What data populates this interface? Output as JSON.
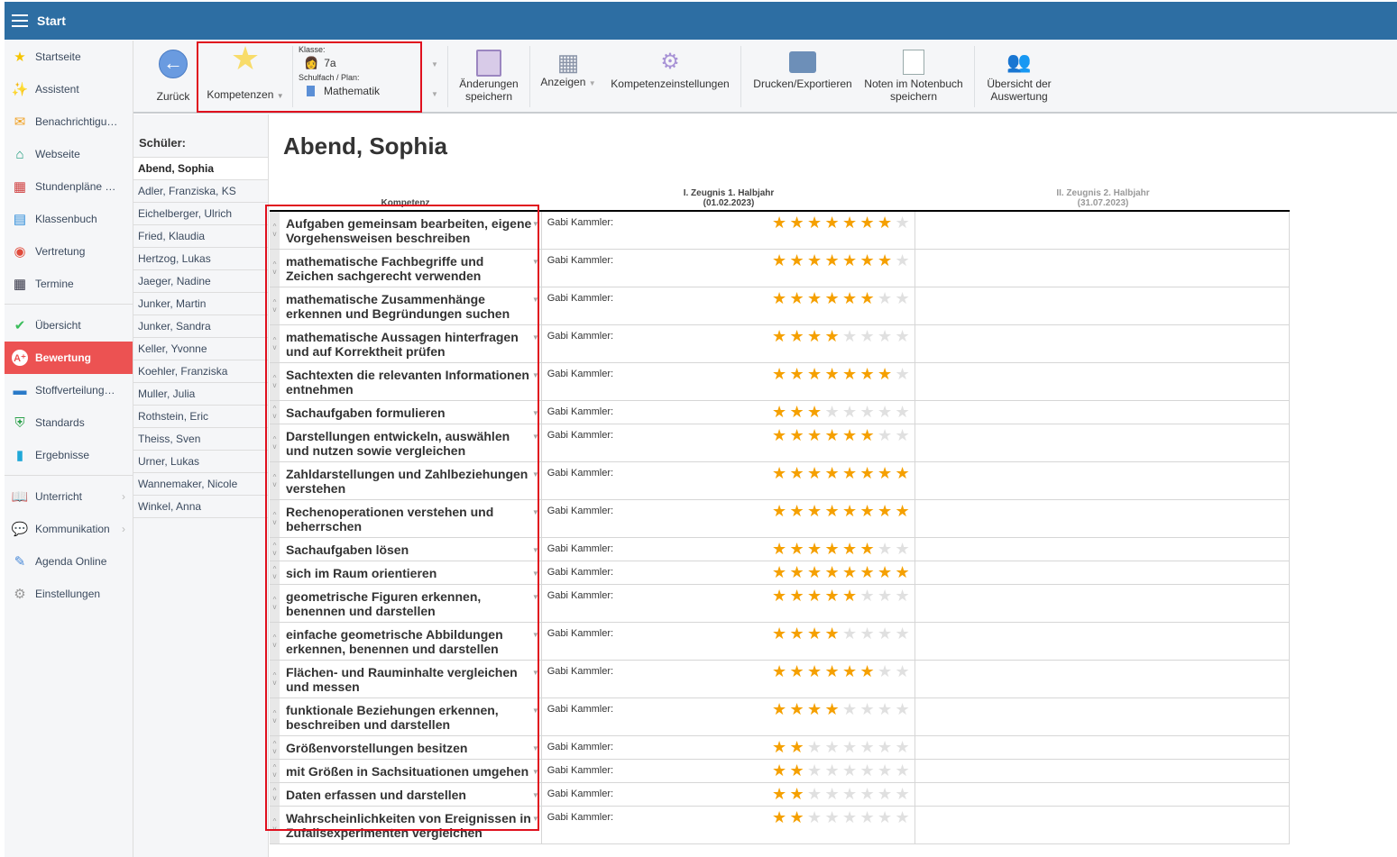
{
  "topbar": {
    "title": "Start"
  },
  "sidebar": {
    "items": [
      {
        "label": "Startseite",
        "icon": "star-icon"
      },
      {
        "label": "Assistent",
        "icon": "magic-wand-icon"
      },
      {
        "label": "Benachrichtigu…",
        "icon": "envelope-icon"
      },
      {
        "label": "Webseite",
        "icon": "house-icon"
      },
      {
        "label": "Stundenpläne …",
        "icon": "calendar-grid-icon"
      },
      {
        "label": "Klassenbuch",
        "icon": "notebook-icon"
      },
      {
        "label": "Vertretung",
        "icon": "person-icon"
      },
      {
        "label": "Termine",
        "icon": "calendar-icon"
      },
      {
        "label": "Übersicht",
        "icon": "check-circle-icon"
      },
      {
        "label": "Bewertung",
        "icon": "grade-icon",
        "active": true
      },
      {
        "label": "Stoffverteilung…",
        "icon": "briefcase-icon"
      },
      {
        "label": "Standards",
        "icon": "shield-icon"
      },
      {
        "label": "Ergebnisse",
        "icon": "bar-chart-icon"
      },
      {
        "label": "Unterricht",
        "icon": "book-icon"
      },
      {
        "label": "Kommunikation",
        "icon": "chat-icon"
      },
      {
        "label": "Agenda Online",
        "icon": "pen-icon"
      },
      {
        "label": "Einstellungen",
        "icon": "gear-icon"
      }
    ]
  },
  "toolbar": {
    "back": "Zurück",
    "kompetenzen": "Kompetenzen",
    "klasse_label": "Klasse:",
    "klasse_value": "7a",
    "fach_label": "Schulfach / Plan:",
    "fach_value": "Mathematik",
    "save": "Änderungen speichern",
    "anzeigen": "Anzeigen",
    "settings": "Kompetenzeinstellungen",
    "print": "Drucken/Exportieren",
    "notenbuch": "Noten im Notenbuch speichern",
    "overview": "Übersicht der Auswertung"
  },
  "students": {
    "header": "Schüler:",
    "list": [
      "Abend, Sophia",
      "Adler, Franziska, KS",
      "Eichelberger, Ulrich",
      "Fried, Klaudia",
      "Hertzog, Lukas",
      "Jaeger, Nadine",
      "Junker, Martin",
      "Junker, Sandra",
      "Keller, Yvonne",
      "Koehler, Franziska",
      "Muller, Julia",
      "Rothstein, Eric",
      "Theiss, Sven",
      "Urner, Lukas",
      "Wannemaker, Nicole",
      "Winkel, Anna"
    ],
    "selected": "Abend, Sophia"
  },
  "main": {
    "student_name": "Abend, Sophia",
    "col_kompetenz": "Kompetenz",
    "col1_title": "I. Zeugnis 1. Halbjahr",
    "col1_date": "(01.02.2023)",
    "col2_title": "II. Zeugnis 2. Halbjahr",
    "col2_date": "(31.07.2023)",
    "max_stars": 8,
    "colors": {
      "star_on": "#f5a000",
      "star_off": "#e0e0e0",
      "accent": "#ec5252",
      "topbar": "#2d6ea3"
    },
    "rows": [
      {
        "kompetenz": "Aufgaben gemeinsam bearbeiten, eigene Vorgehensweisen beschreiben",
        "teacher": "Gabi Kammler:",
        "stars": 7
      },
      {
        "kompetenz": "mathematische Fachbegriffe und Zeichen sachgerecht verwenden",
        "teacher": "Gabi Kammler:",
        "stars": 7
      },
      {
        "kompetenz": "mathematische Zusammenhänge erkennen und Begründungen suchen",
        "teacher": "Gabi Kammler:",
        "stars": 6
      },
      {
        "kompetenz": "mathematische Aussagen hinterfragen und auf Korrektheit prüfen",
        "teacher": "Gabi Kammler:",
        "stars": 4
      },
      {
        "kompetenz": "Sachtexten die relevanten Informationen entnehmen",
        "teacher": "Gabi Kammler:",
        "stars": 7
      },
      {
        "kompetenz": "Sachaufgaben formulieren",
        "teacher": "Gabi Kammler:",
        "stars": 3
      },
      {
        "kompetenz": "Darstellungen entwickeln, auswählen und nutzen sowie vergleichen",
        "teacher": "Gabi Kammler:",
        "stars": 6
      },
      {
        "kompetenz": "Zahldarstellungen und Zahlbeziehungen verstehen",
        "teacher": "Gabi Kammler:",
        "stars": 8
      },
      {
        "kompetenz": "Rechenoperationen verstehen und beherrschen",
        "teacher": "Gabi Kammler:",
        "stars": 8
      },
      {
        "kompetenz": "Sachaufgaben lösen",
        "teacher": "Gabi Kammler:",
        "stars": 6
      },
      {
        "kompetenz": "sich im Raum orientieren",
        "teacher": "Gabi Kammler:",
        "stars": 8
      },
      {
        "kompetenz": "geometrische Figuren erkennen, benennen und darstellen",
        "teacher": "Gabi Kammler:",
        "stars": 5
      },
      {
        "kompetenz": "einfache geometrische Abbildungen erkennen, benennen und darstellen",
        "teacher": "Gabi Kammler:",
        "stars": 4
      },
      {
        "kompetenz": "Flächen- und Rauminhalte vergleichen und messen",
        "teacher": "Gabi Kammler:",
        "stars": 6
      },
      {
        "kompetenz": "funktionale Beziehungen erkennen, beschreiben und darstellen",
        "teacher": "Gabi Kammler:",
        "stars": 4
      },
      {
        "kompetenz": "Größenvorstellungen besitzen",
        "teacher": "Gabi Kammler:",
        "stars": 2
      },
      {
        "kompetenz": "mit Größen in Sachsituationen umgehen",
        "teacher": "Gabi Kammler:",
        "stars": 2
      },
      {
        "kompetenz": "Daten erfassen und darstellen",
        "teacher": "Gabi Kammler:",
        "stars": 2
      },
      {
        "kompetenz": "Wahrscheinlichkeiten von Ereignissen in Zufallsexperimenten vergleichen",
        "teacher": "Gabi Kammler:",
        "stars": 2
      }
    ]
  }
}
